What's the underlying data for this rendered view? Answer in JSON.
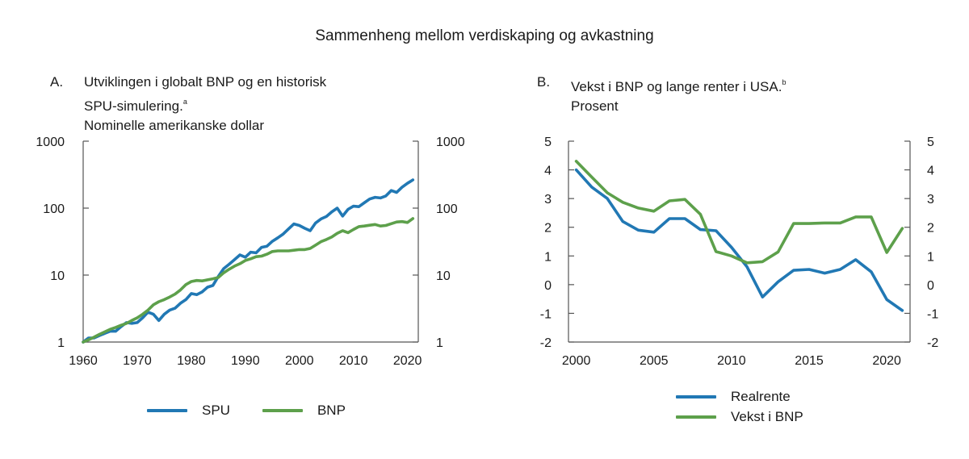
{
  "figure_title": "Sammenheng mellom verdiskaping og avkastning",
  "colors": {
    "blue": "#2178b4",
    "green": "#5da04b",
    "axis": "#555555"
  },
  "panels": {
    "a": {
      "letter": "A.",
      "title_line1": "Utviklingen i globalt BNP og en historisk",
      "title_line2": "SPU-simulering.",
      "title_sup": "a",
      "title_line3": "Nominelle amerikanske dollar"
    },
    "b": {
      "letter": "B.",
      "title_line1": "Vekst i BNP og lange renter i USA.",
      "title_sup": "b",
      "title_line2": "Prosent"
    }
  },
  "chart_data": [
    {
      "type": "line",
      "title": "Utviklingen i globalt BNP og en historisk SPU-simulering. Nominelle amerikanske dollar",
      "yscale": "log",
      "ylim": [
        1,
        1000
      ],
      "xlim": [
        1960,
        2022
      ],
      "yticks": [
        "1",
        "10",
        "100",
        "1000"
      ],
      "ytick_values": [
        1,
        10,
        100,
        1000
      ],
      "xticks": [
        "1960",
        "1970",
        "1980",
        "1990",
        "2000",
        "2010",
        "2020"
      ],
      "xtick_values": [
        1960,
        1970,
        1980,
        1990,
        2000,
        2010,
        2020
      ],
      "xlabel": "",
      "ylabel": "",
      "legend": "bottom",
      "x": [
        1960,
        1961,
        1962,
        1963,
        1964,
        1965,
        1966,
        1967,
        1968,
        1969,
        1970,
        1971,
        1972,
        1973,
        1974,
        1975,
        1976,
        1977,
        1978,
        1979,
        1980,
        1981,
        1982,
        1983,
        1984,
        1985,
        1986,
        1987,
        1988,
        1989,
        1990,
        1991,
        1992,
        1993,
        1994,
        1995,
        1996,
        1997,
        1998,
        1999,
        2000,
        2001,
        2002,
        2003,
        2004,
        2005,
        2006,
        2007,
        2008,
        2009,
        2010,
        2011,
        2012,
        2013,
        2014,
        2015,
        2016,
        2017,
        2018,
        2019,
        2020,
        2021
      ],
      "series": [
        {
          "name": "SPU",
          "color": "#2178b4",
          "values": [
            1,
            1.15,
            1.15,
            1.25,
            1.35,
            1.45,
            1.45,
            1.7,
            1.95,
            1.9,
            1.95,
            2.3,
            2.8,
            2.6,
            2.1,
            2.6,
            3.0,
            3.2,
            3.8,
            4.3,
            5.3,
            5.1,
            5.6,
            6.6,
            7.0,
            9.5,
            12.5,
            14.5,
            17,
            20,
            18.5,
            22,
            21.5,
            26,
            27,
            32,
            36,
            41,
            49,
            58,
            55,
            50,
            46,
            60,
            69,
            75,
            88,
            100,
            76,
            96,
            107,
            105,
            120,
            137,
            145,
            142,
            152,
            183,
            172,
            205,
            235,
            264
          ]
        },
        {
          "name": "BNP",
          "color": "#5da04b",
          "values": [
            1,
            1.08,
            1.18,
            1.3,
            1.42,
            1.55,
            1.65,
            1.78,
            1.9,
            2.1,
            2.3,
            2.6,
            3.0,
            3.6,
            4.0,
            4.3,
            4.7,
            5.2,
            6.0,
            7.2,
            8.0,
            8.3,
            8.2,
            8.5,
            8.8,
            9.2,
            10.8,
            12.2,
            13.6,
            14.8,
            16.5,
            17.5,
            18.8,
            19.2,
            20.5,
            22.5,
            23,
            23,
            23,
            23.5,
            24,
            24,
            25,
            28,
            31.5,
            34,
            37,
            42,
            46,
            43,
            48,
            53,
            54,
            55.5,
            57,
            54,
            55,
            58.5,
            62,
            63,
            61,
            70
          ]
        }
      ]
    },
    {
      "type": "line",
      "title": "Vekst i BNP og lange renter i USA. Prosent",
      "ylim": [
        -2,
        5
      ],
      "xlim": [
        1999.5,
        2021.5
      ],
      "yticks": [
        "-2",
        "-1",
        "0",
        "1",
        "2",
        "3",
        "4",
        "5"
      ],
      "ytick_values": [
        -2,
        -1,
        0,
        1,
        2,
        3,
        4,
        5
      ],
      "xticks": [
        "2000",
        "2005",
        "2010",
        "2015",
        "2020"
      ],
      "xtick_values": [
        2000,
        2005,
        2010,
        2015,
        2020
      ],
      "xlabel": "",
      "ylabel": "",
      "legend": "bottom",
      "x": [
        2000,
        2001,
        2002,
        2003,
        2004,
        2005,
        2006,
        2007,
        2008,
        2009,
        2010,
        2011,
        2012,
        2013,
        2014,
        2015,
        2016,
        2017,
        2018,
        2019,
        2020,
        2021
      ],
      "series": [
        {
          "name": "Realrente",
          "color": "#2178b4",
          "values": [
            4.0,
            3.4,
            3.0,
            2.2,
            1.9,
            1.83,
            2.3,
            2.3,
            1.92,
            1.88,
            1.3,
            0.62,
            -0.43,
            0.1,
            0.5,
            0.53,
            0.4,
            0.53,
            0.87,
            0.45,
            -0.52,
            -0.9
          ]
        },
        {
          "name": "Vekst i BNP",
          "color": "#5da04b",
          "values": [
            4.3,
            3.75,
            3.2,
            2.87,
            2.67,
            2.56,
            2.92,
            2.97,
            2.45,
            1.15,
            1.0,
            0.76,
            0.8,
            1.14,
            2.13,
            2.13,
            2.15,
            2.15,
            2.36,
            2.36,
            1.12,
            1.96
          ]
        }
      ]
    }
  ]
}
